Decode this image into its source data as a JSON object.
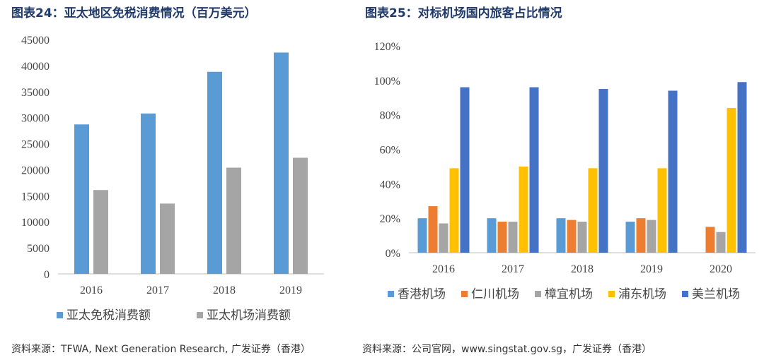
{
  "chart_data": [
    {
      "type": "bar",
      "title": "图表24：亚太地区免税消费情况（百万美元）",
      "categories": [
        "2016",
        "2017",
        "2018",
        "2019"
      ],
      "series": [
        {
          "name": "亚太免税消费额",
          "color": "#5b9bd5",
          "values": [
            28700,
            30800,
            38800,
            42500
          ]
        },
        {
          "name": "亚太机场消费额",
          "color": "#a5a5a5",
          "values": [
            16100,
            13500,
            20400,
            22300
          ]
        }
      ],
      "ylim": [
        0,
        45000
      ],
      "yticks": [
        "0",
        "5000",
        "10000",
        "15000",
        "20000",
        "25000",
        "30000",
        "35000",
        "40000",
        "45000"
      ],
      "xlabel": "",
      "ylabel": "",
      "legend": "bottom",
      "source": "资料来源：TFWA, Next Generation Research, 广发证券（香港）"
    },
    {
      "type": "bar",
      "title": "图表25：对标机场国内旅客占比情况",
      "categories": [
        "2016",
        "2017",
        "2018",
        "2019",
        "2020"
      ],
      "series": [
        {
          "name": "香港机场",
          "color": "#5b9bd5",
          "values": [
            0.2,
            0.2,
            0.2,
            0.18,
            null
          ]
        },
        {
          "name": "仁川机场",
          "color": "#ed7d31",
          "values": [
            0.27,
            0.18,
            0.19,
            0.2,
            0.15
          ]
        },
        {
          "name": "樟宜机场",
          "color": "#a5a5a5",
          "values": [
            0.17,
            0.18,
            0.18,
            0.19,
            0.12
          ]
        },
        {
          "name": "浦东机场",
          "color": "#ffc000",
          "values": [
            0.49,
            0.5,
            0.49,
            0.49,
            0.84
          ]
        },
        {
          "name": "美兰机场",
          "color": "#4472c4",
          "values": [
            0.96,
            0.96,
            0.95,
            0.94,
            0.99
          ]
        }
      ],
      "ylim": [
        0,
        1.2
      ],
      "yticks": [
        "0%",
        "20%",
        "40%",
        "60%",
        "80%",
        "100%",
        "120%"
      ],
      "xlabel": "",
      "ylabel": "",
      "legend": "bottom",
      "source": "资料来源：公司官网，www.singstat.gov.sg，广发证券（香港）"
    }
  ]
}
